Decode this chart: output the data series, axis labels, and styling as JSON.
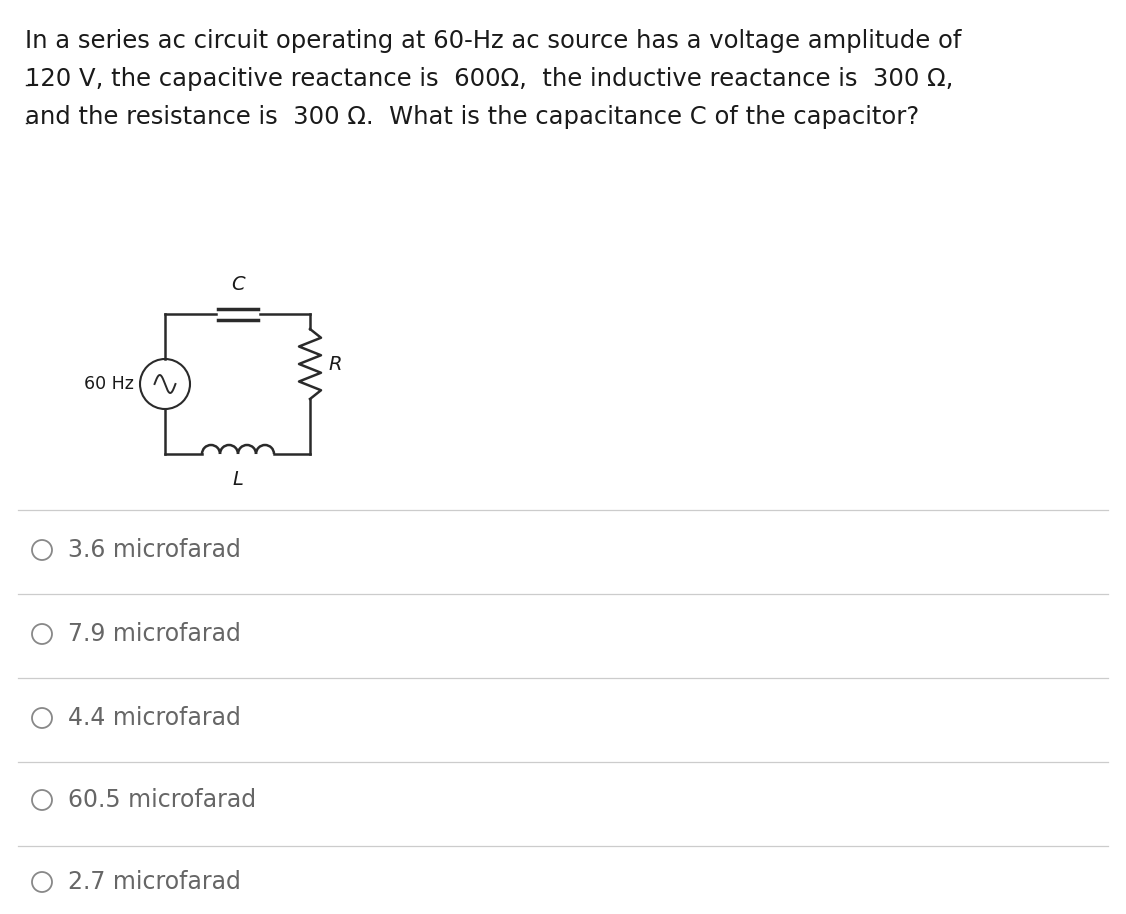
{
  "bg_color": "#ffffff",
  "text_color": "#1a1a1a",
  "q_line1": "In a series ac circuit operating at 60-Hz ac source has a voltage amplitude of",
  "q_line2_pre": "120 V, the capacitive reactance is  ",
  "q_line2_hl1": "600Ω,",
  "q_line2_mid": "  the inductive reactance is  ",
  "q_line2_hl2": "300 Ω,",
  "q_line3_pre": "and the resistance is  ",
  "q_line3_hl": "300 Ω.",
  "q_line3_post": "  What is the capacitance C of the capacitor?",
  "source_label": "60 Hz",
  "cap_label": "C",
  "ind_label": "L",
  "res_label": "R",
  "options": [
    "3.6 microfarad",
    "7.9 microfarad",
    "4.4 microfarad",
    "60.5 microfarad",
    "2.7 microfarad"
  ],
  "divider_color": "#cccccc",
  "option_text_color": "#666666",
  "question_fontsize": 17.5,
  "option_fontsize": 17.0,
  "circuit_color": "#2a2a2a",
  "radio_color": "#888888"
}
